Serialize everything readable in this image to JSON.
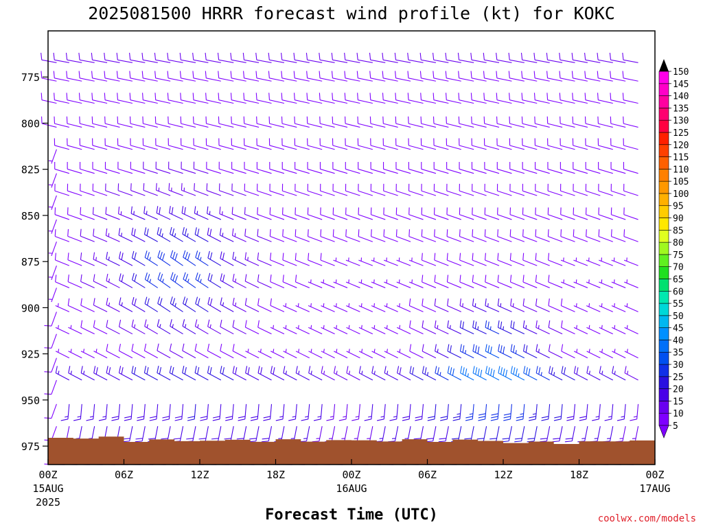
{
  "chart_data": {
    "type": "wind-barb-profile",
    "title": "2025081500 HRRR forecast wind profile (kt) for KOKC",
    "xlabel": "Forecast Time (UTC)",
    "credit": "coolwx.com/models",
    "y_axis": {
      "ticks": [
        775,
        800,
        825,
        850,
        875,
        900,
        925,
        950,
        975
      ],
      "range_hpa": [
        750,
        985
      ],
      "inverted": true
    },
    "x_axis": {
      "range_hours": [
        0,
        48
      ],
      "ticks": [
        {
          "hour": 0,
          "label": "00Z",
          "sub": "15AUG",
          "sub2": "2025"
        },
        {
          "hour": 6,
          "label": "06Z",
          "sub": "",
          "sub2": ""
        },
        {
          "hour": 12,
          "label": "12Z",
          "sub": "",
          "sub2": ""
        },
        {
          "hour": 18,
          "label": "18Z",
          "sub": "",
          "sub2": ""
        },
        {
          "hour": 24,
          "label": "00Z",
          "sub": "16AUG",
          "sub2": ""
        },
        {
          "hour": 30,
          "label": "06Z",
          "sub": "",
          "sub2": ""
        },
        {
          "hour": 36,
          "label": "12Z",
          "sub": "",
          "sub2": ""
        },
        {
          "hour": 42,
          "label": "18Z",
          "sub": "",
          "sub2": ""
        },
        {
          "hour": 48,
          "label": "00Z",
          "sub": "17AUG",
          "sub2": ""
        }
      ]
    },
    "colorbar": {
      "levels": [
        5,
        10,
        15,
        20,
        25,
        30,
        35,
        40,
        45,
        50,
        55,
        60,
        65,
        70,
        75,
        80,
        85,
        90,
        95,
        100,
        105,
        110,
        115,
        120,
        125,
        130,
        135,
        140,
        145,
        150
      ],
      "colors": [
        "#7f00ff",
        "#6a00f0",
        "#4800e8",
        "#2a10e0",
        "#1030e8",
        "#0050f0",
        "#0070f8",
        "#0090ff",
        "#00b8f0",
        "#00d8d8",
        "#00e8b0",
        "#00e070",
        "#20e020",
        "#60f020",
        "#a0f820",
        "#e0ff20",
        "#ffe800",
        "#ffcc00",
        "#ffb000",
        "#ff9800",
        "#ff8000",
        "#ff6000",
        "#ff4000",
        "#ff2000",
        "#ff0040",
        "#ff0070",
        "#ff00a0",
        "#ff00c8",
        "#ff00e8",
        "#ff40ff"
      ]
    },
    "wind_profile": {
      "times_hours": [
        1,
        2,
        3,
        4,
        5,
        6,
        7,
        8,
        9,
        10,
        11,
        12,
        13,
        14,
        15,
        16,
        17,
        18,
        19,
        20,
        21,
        22,
        23,
        24,
        25,
        26,
        27,
        28,
        29,
        30,
        31,
        32,
        33,
        34,
        35,
        36,
        37,
        38,
        39,
        40,
        41,
        42,
        43,
        44,
        45,
        46,
        47
      ],
      "levels_hpa": [
        765,
        775,
        787,
        800,
        812,
        825,
        837,
        850,
        862,
        875,
        887,
        900,
        912,
        925,
        937,
        950,
        962,
        975
      ],
      "note": "Winds (kt) are westerly-to-northwesterly aloft, strengthening to 20-35 kt near 850-900 hPa at 06Z-18Z 15AUG and again near 925 hPa at 12Z 16AUG; southerly 5-15 kt near the surface."
    },
    "terrain": {
      "surface_pressure_hpa": 972,
      "color": "#a0522d"
    }
  }
}
